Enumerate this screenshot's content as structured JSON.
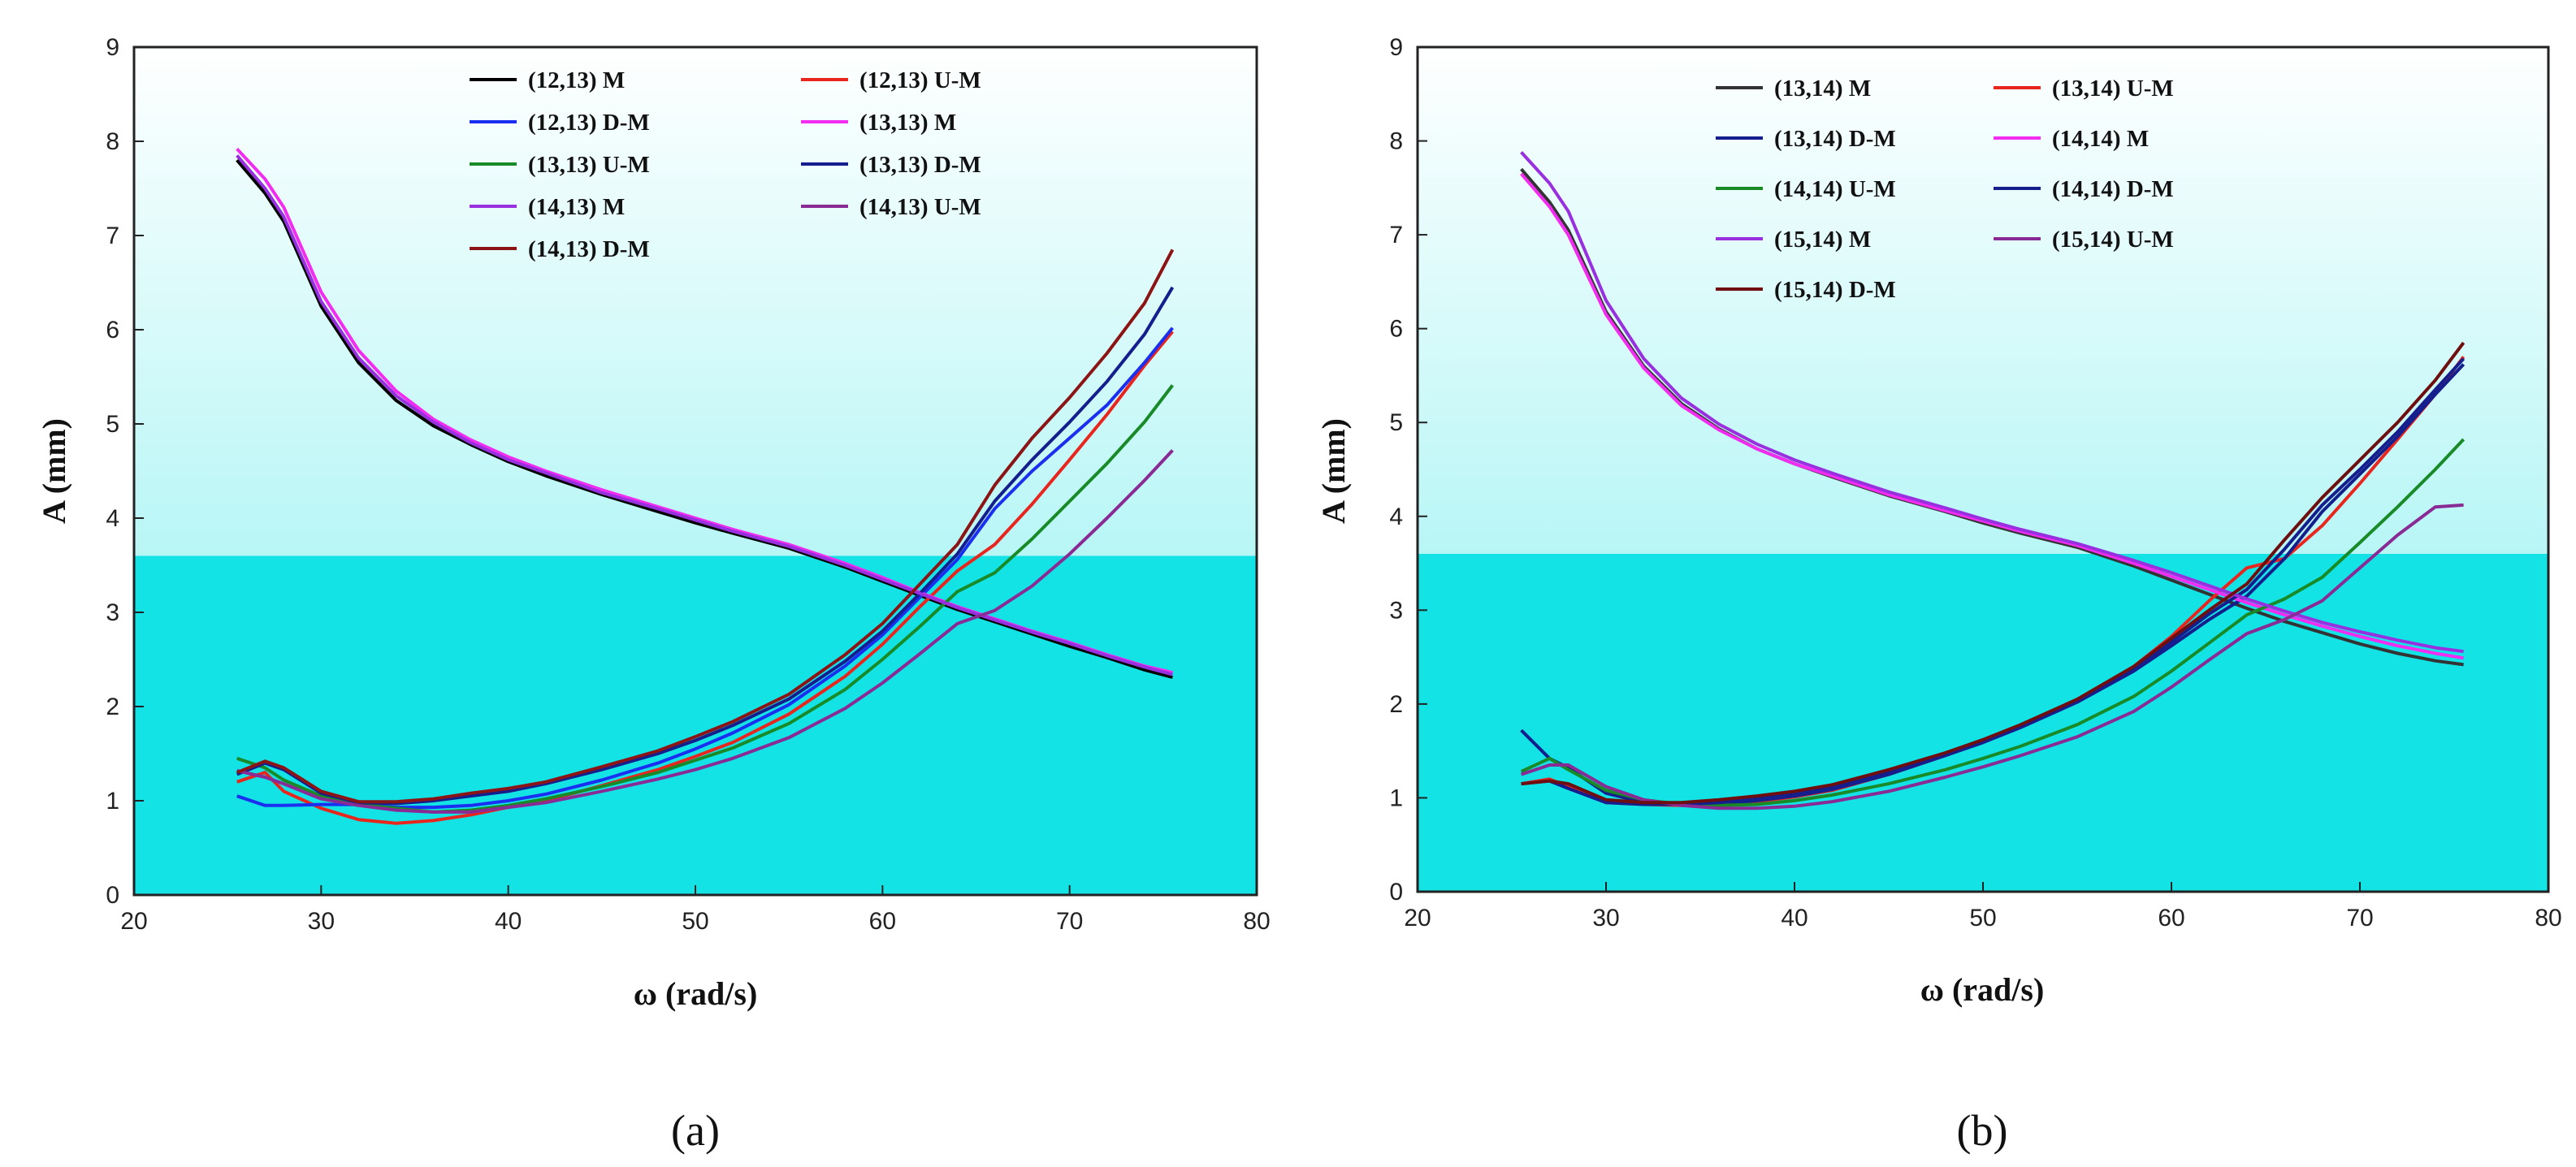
{
  "chart_data": [
    {
      "type": "line",
      "panel_label": "(a)",
      "xlabel": "ω (rad/s)",
      "ylabel": "A (mm)",
      "xlim": [
        20,
        80
      ],
      "ylim": [
        0,
        9
      ],
      "xticks": [
        20,
        30,
        40,
        50,
        60,
        70,
        80
      ],
      "yticks": [
        0,
        1,
        2,
        3,
        4,
        5,
        6,
        7,
        8,
        9
      ],
      "legend_position": "top-center",
      "series": [
        {
          "name": "(12,13) M",
          "color": "#000000",
          "x": [
            25.5,
            27,
            28,
            30,
            32,
            34,
            36,
            38,
            40,
            42,
            45,
            48,
            50,
            52,
            55,
            58,
            60,
            62,
            64,
            66,
            68,
            70,
            72,
            74,
            75.5
          ],
          "y": [
            7.8,
            7.45,
            7.15,
            6.25,
            5.65,
            5.25,
            4.98,
            4.78,
            4.6,
            4.45,
            4.25,
            4.07,
            3.95,
            3.84,
            3.68,
            3.48,
            3.33,
            3.18,
            3.03,
            2.9,
            2.77,
            2.64,
            2.52,
            2.39,
            2.31
          ]
        },
        {
          "name": "(12,13) U-M",
          "color": "#e8261e",
          "x": [
            25.5,
            27,
            28,
            30,
            32,
            34,
            36,
            38,
            40,
            42,
            45,
            48,
            50,
            52,
            55,
            58,
            60,
            62,
            64,
            66,
            68,
            70,
            72,
            74,
            75.5
          ],
          "y": [
            1.2,
            1.3,
            1.1,
            0.92,
            0.8,
            0.76,
            0.79,
            0.85,
            0.93,
            1.0,
            1.16,
            1.33,
            1.47,
            1.62,
            1.92,
            2.32,
            2.66,
            3.06,
            3.44,
            3.72,
            4.15,
            4.62,
            5.1,
            5.62,
            5.98
          ]
        },
        {
          "name": "(12,13) D-M",
          "color": "#1a2ff0",
          "x": [
            25.5,
            27,
            28,
            30,
            32,
            34,
            36,
            38,
            40,
            42,
            45,
            48,
            50,
            52,
            55,
            58,
            60,
            62,
            64,
            66,
            68,
            70,
            72,
            74,
            75.5
          ],
          "y": [
            1.05,
            0.95,
            0.95,
            0.96,
            0.96,
            0.93,
            0.93,
            0.95,
            1.0,
            1.07,
            1.22,
            1.4,
            1.55,
            1.72,
            2.02,
            2.43,
            2.76,
            3.16,
            3.56,
            4.1,
            4.5,
            4.85,
            5.2,
            5.65,
            6.02
          ]
        },
        {
          "name": "(13,13) M",
          "color": "#f22cf0",
          "x": [
            25.5,
            27,
            28,
            30,
            32,
            34,
            36,
            38,
            40,
            42,
            45,
            48,
            50,
            52,
            55,
            58,
            60,
            62,
            64,
            66,
            68,
            70,
            72,
            74,
            75.5
          ],
          "y": [
            7.92,
            7.6,
            7.3,
            6.4,
            5.78,
            5.35,
            5.05,
            4.83,
            4.65,
            4.5,
            4.3,
            4.12,
            4.0,
            3.88,
            3.72,
            3.52,
            3.37,
            3.21,
            3.06,
            2.93,
            2.8,
            2.68,
            2.55,
            2.43,
            2.36
          ]
        },
        {
          "name": "(13,13) U-M",
          "color": "#188a28",
          "x": [
            25.5,
            27,
            28,
            30,
            32,
            34,
            36,
            38,
            40,
            42,
            45,
            48,
            50,
            52,
            55,
            58,
            60,
            62,
            64,
            66,
            68,
            70,
            72,
            74,
            75.5
          ],
          "y": [
            1.45,
            1.35,
            1.22,
            1.05,
            0.96,
            0.92,
            0.88,
            0.9,
            0.95,
            1.02,
            1.15,
            1.3,
            1.43,
            1.56,
            1.82,
            2.18,
            2.5,
            2.85,
            3.22,
            3.42,
            3.78,
            4.18,
            4.58,
            5.02,
            5.41
          ]
        },
        {
          "name": "(13,13) D-M",
          "color": "#141e8c",
          "x": [
            25.5,
            27,
            28,
            30,
            32,
            34,
            36,
            38,
            40,
            42,
            45,
            48,
            50,
            52,
            55,
            58,
            60,
            62,
            64,
            66,
            68,
            70,
            72,
            74,
            75.5
          ],
          "y": [
            1.28,
            1.4,
            1.33,
            1.08,
            0.98,
            0.97,
            1.0,
            1.05,
            1.1,
            1.18,
            1.33,
            1.5,
            1.64,
            1.8,
            2.08,
            2.48,
            2.8,
            3.2,
            3.62,
            4.18,
            4.62,
            5.02,
            5.45,
            5.95,
            6.45
          ]
        },
        {
          "name": "(14,13) M",
          "color": "#9830e0",
          "x": [
            25.5,
            27,
            28,
            30,
            32,
            34,
            36,
            38,
            40,
            42,
            45,
            48,
            50,
            52,
            55,
            58,
            60,
            62,
            64,
            66,
            68,
            70,
            72,
            74,
            75.5
          ],
          "y": [
            7.85,
            7.5,
            7.2,
            6.3,
            5.7,
            5.3,
            5.02,
            4.8,
            4.62,
            4.48,
            4.27,
            4.1,
            3.98,
            3.86,
            3.7,
            3.5,
            3.35,
            3.2,
            3.05,
            2.92,
            2.79,
            2.67,
            2.54,
            2.42,
            2.34
          ]
        },
        {
          "name": "(14,13) U-M",
          "color": "#8a2a94",
          "x": [
            25.5,
            27,
            28,
            30,
            32,
            34,
            36,
            38,
            40,
            42,
            45,
            48,
            50,
            52,
            55,
            58,
            60,
            62,
            64,
            66,
            68,
            70,
            72,
            74,
            75.5
          ],
          "y": [
            1.32,
            1.25,
            1.18,
            1.02,
            0.95,
            0.9,
            0.88,
            0.88,
            0.93,
            0.98,
            1.1,
            1.23,
            1.33,
            1.45,
            1.67,
            1.98,
            2.25,
            2.56,
            2.88,
            3.02,
            3.28,
            3.62,
            4.0,
            4.4,
            4.72
          ]
        },
        {
          "name": "(14,13) D-M",
          "color": "#8c1414",
          "x": [
            25.5,
            27,
            28,
            30,
            32,
            34,
            36,
            38,
            40,
            42,
            45,
            48,
            50,
            52,
            55,
            58,
            60,
            62,
            64,
            66,
            68,
            70,
            72,
            74,
            75.5
          ],
          "y": [
            1.3,
            1.42,
            1.35,
            1.1,
            0.99,
            0.99,
            1.02,
            1.08,
            1.13,
            1.2,
            1.36,
            1.53,
            1.68,
            1.84,
            2.13,
            2.55,
            2.88,
            3.3,
            3.72,
            4.35,
            4.85,
            5.28,
            5.75,
            6.28,
            6.85
          ]
        }
      ]
    },
    {
      "type": "line",
      "panel_label": "(b)",
      "xlabel": "ω (rad/s)",
      "ylabel": "A (mm)",
      "xlim": [
        20,
        80
      ],
      "ylim": [
        0,
        9
      ],
      "xticks": [
        20,
        30,
        40,
        50,
        60,
        70,
        80
      ],
      "yticks": [
        0,
        1,
        2,
        3,
        4,
        5,
        6,
        7,
        8,
        9
      ],
      "legend_position": "top-center",
      "series": [
        {
          "name": "(13,14) M",
          "color": "#333333",
          "x": [
            25.5,
            27,
            28,
            30,
            32,
            34,
            36,
            38,
            40,
            42,
            45,
            48,
            50,
            52,
            55,
            58,
            60,
            62,
            64,
            66,
            68,
            70,
            72,
            74,
            75.5
          ],
          "y": [
            7.7,
            7.35,
            7.05,
            6.18,
            5.6,
            5.2,
            4.93,
            4.72,
            4.56,
            4.42,
            4.22,
            4.05,
            3.93,
            3.82,
            3.67,
            3.47,
            3.32,
            3.17,
            3.02,
            2.88,
            2.76,
            2.64,
            2.54,
            2.46,
            2.42
          ]
        },
        {
          "name": "(13,14) U-M",
          "color": "#e8261e",
          "x": [
            25.5,
            27,
            28,
            30,
            32,
            34,
            36,
            38,
            40,
            42,
            45,
            48,
            50,
            52,
            55,
            58,
            60,
            62,
            64,
            66,
            68,
            70,
            72,
            74,
            75.5
          ],
          "y": [
            1.15,
            1.2,
            1.12,
            0.95,
            0.93,
            0.92,
            0.93,
            0.96,
            1.01,
            1.08,
            1.25,
            1.45,
            1.6,
            1.77,
            2.05,
            2.4,
            2.72,
            3.1,
            3.45,
            3.55,
            3.9,
            4.35,
            4.82,
            5.3,
            5.7
          ]
        },
        {
          "name": "(13,14) D-M",
          "color": "#141e8c",
          "x": [
            25.5,
            27,
            28,
            30,
            32,
            34,
            36,
            38,
            40,
            42,
            45,
            48,
            50,
            52,
            55,
            58,
            60,
            62,
            64,
            66,
            68,
            70,
            72,
            74,
            75.5
          ],
          "y": [
            1.72,
            1.42,
            1.32,
            1.05,
            0.95,
            0.93,
            0.93,
            0.97,
            1.02,
            1.09,
            1.25,
            1.45,
            1.59,
            1.75,
            2.02,
            2.35,
            2.62,
            2.9,
            3.15,
            3.55,
            4.05,
            4.45,
            4.85,
            5.3,
            5.62
          ]
        },
        {
          "name": "(14,14) M",
          "color": "#f22cf0",
          "x": [
            25.5,
            27,
            28,
            30,
            32,
            34,
            36,
            38,
            40,
            42,
            45,
            48,
            50,
            52,
            55,
            58,
            60,
            62,
            64,
            66,
            68,
            70,
            72,
            74,
            75.5
          ],
          "y": [
            7.65,
            7.3,
            7.0,
            6.15,
            5.58,
            5.18,
            4.92,
            4.72,
            4.56,
            4.43,
            4.23,
            4.06,
            3.95,
            3.84,
            3.69,
            3.5,
            3.36,
            3.22,
            3.08,
            2.95,
            2.83,
            2.72,
            2.62,
            2.54,
            2.49
          ]
        },
        {
          "name": "(14,14) U-M",
          "color": "#188a28",
          "x": [
            25.5,
            27,
            28,
            30,
            32,
            34,
            36,
            38,
            40,
            42,
            45,
            48,
            50,
            52,
            55,
            58,
            60,
            62,
            64,
            66,
            68,
            70,
            72,
            74,
            75.5
          ],
          "y": [
            1.28,
            1.42,
            1.3,
            1.08,
            0.98,
            0.93,
            0.92,
            0.93,
            0.97,
            1.03,
            1.15,
            1.3,
            1.42,
            1.55,
            1.78,
            2.08,
            2.35,
            2.65,
            2.95,
            3.12,
            3.35,
            3.72,
            4.1,
            4.5,
            4.82
          ]
        },
        {
          "name": "(14,14) D-M",
          "color": "#141e8c",
          "x": [
            25.5,
            27,
            28,
            30,
            32,
            34,
            36,
            38,
            40,
            42,
            45,
            48,
            50,
            52,
            55,
            58,
            60,
            62,
            64,
            66,
            68,
            70,
            72,
            74,
            75.5
          ],
          "y": [
            1.15,
            1.18,
            1.1,
            0.95,
            0.93,
            0.93,
            0.95,
            0.99,
            1.04,
            1.11,
            1.27,
            1.47,
            1.61,
            1.77,
            2.04,
            2.38,
            2.66,
            2.96,
            3.22,
            3.65,
            4.12,
            4.5,
            4.9,
            5.35,
            5.68
          ]
        },
        {
          "name": "(15,14) M",
          "color": "#9830e0",
          "x": [
            25.5,
            27,
            28,
            30,
            32,
            34,
            36,
            38,
            40,
            42,
            45,
            48,
            50,
            52,
            55,
            58,
            60,
            62,
            64,
            66,
            68,
            70,
            72,
            74,
            75.5
          ],
          "y": [
            7.88,
            7.55,
            7.25,
            6.3,
            5.68,
            5.26,
            4.98,
            4.77,
            4.6,
            4.46,
            4.26,
            4.09,
            3.97,
            3.86,
            3.71,
            3.53,
            3.4,
            3.26,
            3.12,
            2.99,
            2.87,
            2.77,
            2.68,
            2.6,
            2.56
          ]
        },
        {
          "name": "(15,14) U-M",
          "color": "#8a2a94",
          "x": [
            25.5,
            27,
            28,
            30,
            32,
            34,
            36,
            38,
            40,
            42,
            45,
            48,
            50,
            52,
            55,
            58,
            60,
            62,
            64,
            66,
            68,
            70,
            72,
            74,
            75.5
          ],
          "y": [
            1.25,
            1.35,
            1.35,
            1.12,
            0.98,
            0.92,
            0.89,
            0.89,
            0.91,
            0.96,
            1.07,
            1.22,
            1.33,
            1.45,
            1.65,
            1.92,
            2.18,
            2.47,
            2.75,
            2.9,
            3.1,
            3.45,
            3.8,
            4.1,
            4.12
          ]
        },
        {
          "name": "(15,14) D-M",
          "color": "#6e0e0e",
          "x": [
            25.5,
            27,
            28,
            30,
            32,
            34,
            36,
            38,
            40,
            42,
            45,
            48,
            50,
            52,
            55,
            58,
            60,
            62,
            64,
            66,
            68,
            70,
            72,
            74,
            75.5
          ],
          "y": [
            1.15,
            1.18,
            1.15,
            0.98,
            0.95,
            0.95,
            0.98,
            1.02,
            1.07,
            1.14,
            1.3,
            1.48,
            1.62,
            1.78,
            2.05,
            2.4,
            2.7,
            3.0,
            3.28,
            3.75,
            4.2,
            4.6,
            5.0,
            5.45,
            5.85
          ]
        }
      ]
    }
  ]
}
